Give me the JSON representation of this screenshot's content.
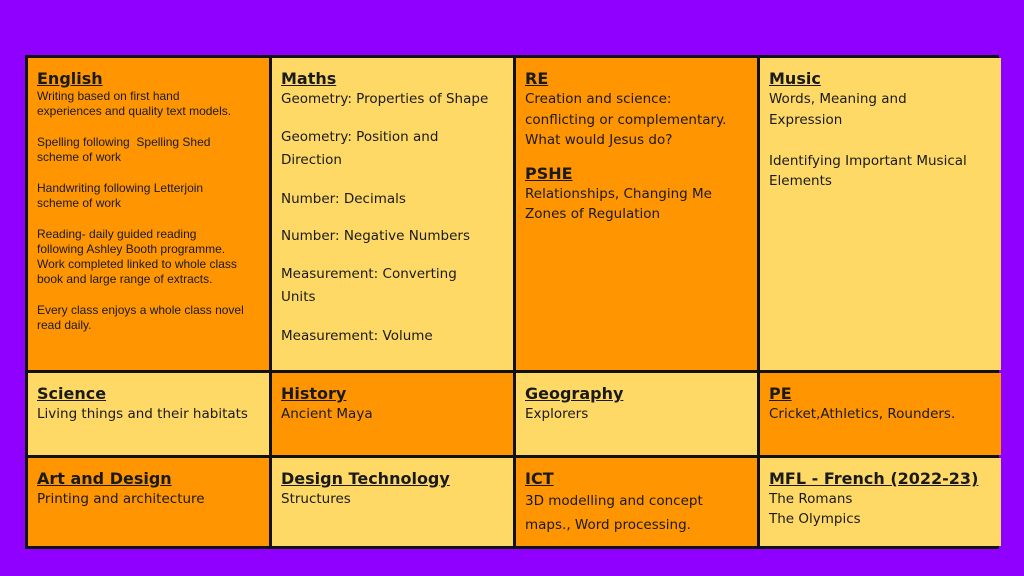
{
  "cells": {
    "english": {
      "title": "English",
      "lines": [
        "Writing based on first hand\nexperiences and quality text models.",
        "Spelling following  Spelling Shed\nscheme of work",
        "Handwriting following Letterjoin\nscheme of work",
        "Reading- daily guided reading\nfollowing Ashley Booth programme.\nWork completed linked to whole class\nbook and large range of extracts.",
        "Every class enjoys a whole class novel\nread daily."
      ]
    },
    "maths": {
      "title": "Maths",
      "lines": [
        "Geometry: Properties of Shape",
        "Geometry: Position and\nDirection",
        "Number: Decimals",
        "Number: Negative Numbers",
        "Measurement: Converting\nUnits",
        "Measurement: Volume"
      ]
    },
    "re": {
      "title": "RE",
      "text": "Creation and science:\nconflicting or complementary.\nWhat would Jesus do?"
    },
    "pshe": {
      "title": "PSHE",
      "text": "Relationships, Changing Me\nZones of Regulation"
    },
    "music": {
      "title": "Music",
      "text": "Words, Meaning and\nExpression\n\nIdentifying Important Musical\nElements"
    },
    "science": {
      "title": "Science",
      "text": "Living things and their habitats"
    },
    "history": {
      "title": "History",
      "text": "Ancient Maya"
    },
    "geography": {
      "title": "Geography",
      "text": "Explorers"
    },
    "pe": {
      "title": "PE",
      "text": "Cricket,Athletics, Rounders."
    },
    "art": {
      "title": "Art and Design",
      "text": "Printing and architecture"
    },
    "dt": {
      "title": "Design Technology",
      "text": "Structures"
    },
    "ict": {
      "title": "ICT",
      "text": "3D modelling and concept\nmaps., Word processing."
    },
    "mfl": {
      "title": "MFL - French (2022-23)",
      "text": "The Romans\nThe Olympics"
    }
  },
  "colors": {
    "background": "#8f00ff",
    "orange_cell": "#ff9500",
    "yellow_cell": "#ffd966",
    "border": "#111111"
  }
}
